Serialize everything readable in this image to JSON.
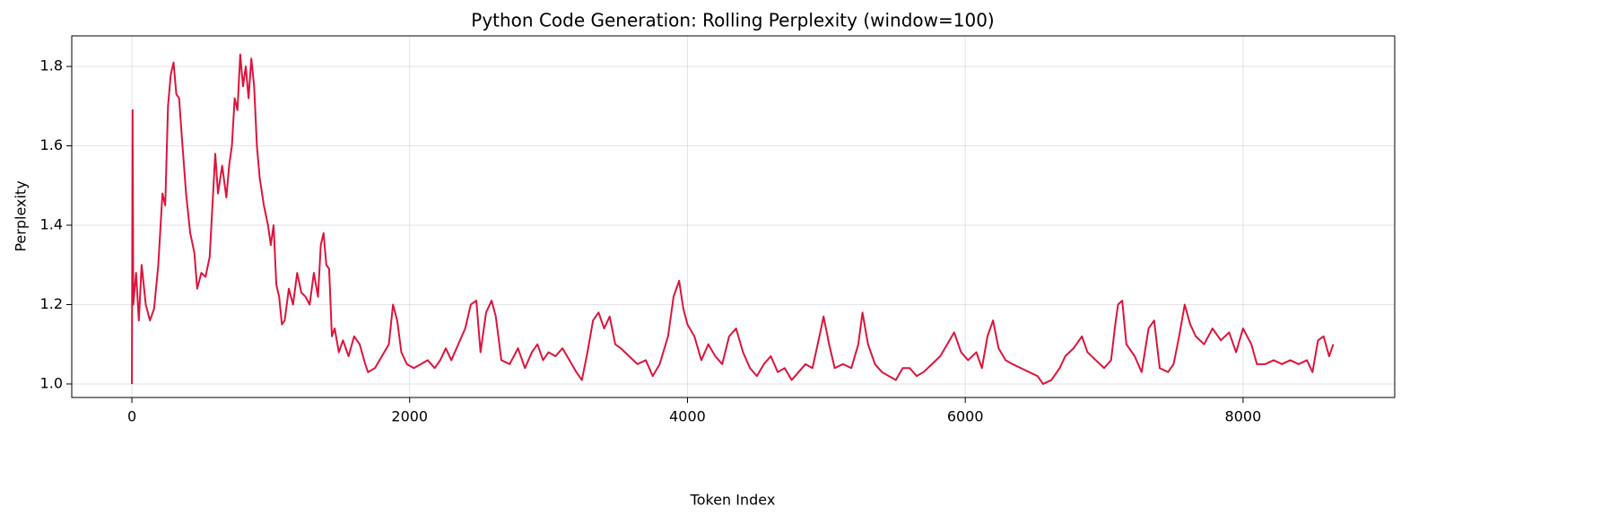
{
  "chart_data": {
    "type": "line",
    "title": "Python Code Generation: Rolling Perplexity (window=100)",
    "x_label": "Token Index",
    "y_label": "Perplexity",
    "color": "#dc143c",
    "grid": true,
    "xlim": [
      -433,
      9092
    ],
    "ylim": [
      0.966,
      1.877
    ],
    "xticks": [
      0,
      2000,
      4000,
      6000,
      8000
    ],
    "yticks": [
      {
        "value": 1,
        "label": "1.0"
      },
      1.2,
      1.4,
      1.6,
      1.8
    ],
    "x": [
      0,
      5,
      10,
      30,
      50,
      70,
      100,
      130,
      160,
      190,
      220,
      240,
      260,
      280,
      300,
      320,
      340,
      360,
      390,
      420,
      450,
      470,
      500,
      530,
      560,
      580,
      600,
      620,
      650,
      680,
      700,
      720,
      740,
      760,
      780,
      800,
      820,
      840,
      860,
      880,
      900,
      920,
      950,
      980,
      1000,
      1020,
      1040,
      1060,
      1080,
      1100,
      1130,
      1160,
      1190,
      1220,
      1250,
      1280,
      1310,
      1340,
      1360,
      1380,
      1400,
      1420,
      1440,
      1460,
      1490,
      1520,
      1560,
      1600,
      1640,
      1680,
      1700,
      1750,
      1800,
      1850,
      1880,
      1910,
      1940,
      1980,
      2030,
      2080,
      2130,
      2180,
      2220,
      2260,
      2300,
      2350,
      2400,
      2440,
      2480,
      2510,
      2550,
      2590,
      2620,
      2660,
      2720,
      2780,
      2830,
      2880,
      2920,
      2960,
      3000,
      3050,
      3100,
      3150,
      3200,
      3240,
      3280,
      3320,
      3360,
      3400,
      3440,
      3480,
      3520,
      3580,
      3640,
      3700,
      3750,
      3800,
      3860,
      3900,
      3940,
      3970,
      4000,
      4050,
      4100,
      4150,
      4200,
      4250,
      4300,
      4350,
      4400,
      4450,
      4500,
      4550,
      4600,
      4650,
      4700,
      4750,
      4800,
      4850,
      4900,
      4950,
      4980,
      5020,
      5060,
      5120,
      5180,
      5230,
      5260,
      5300,
      5350,
      5400,
      5450,
      5500,
      5550,
      5600,
      5650,
      5700,
      5760,
      5820,
      5870,
      5920,
      5970,
      6020,
      6080,
      6120,
      6160,
      6200,
      6240,
      6290,
      6340,
      6400,
      6460,
      6520,
      6560,
      6620,
      6680,
      6720,
      6780,
      6840,
      6880,
      6940,
      7000,
      7050,
      7080,
      7100,
      7130,
      7160,
      7220,
      7270,
      7320,
      7360,
      7400,
      7460,
      7500,
      7540,
      7580,
      7620,
      7660,
      7720,
      7780,
      7840,
      7900,
      7950,
      8000,
      8060,
      8100,
      8160,
      8220,
      8280,
      8340,
      8400,
      8460,
      8500,
      8540,
      8580,
      8620,
      8650
    ],
    "values": [
      1.0,
      1.69,
      1.2,
      1.28,
      1.16,
      1.3,
      1.2,
      1.16,
      1.19,
      1.3,
      1.48,
      1.45,
      1.7,
      1.78,
      1.81,
      1.73,
      1.72,
      1.62,
      1.48,
      1.38,
      1.33,
      1.24,
      1.28,
      1.27,
      1.32,
      1.45,
      1.58,
      1.48,
      1.55,
      1.47,
      1.55,
      1.6,
      1.72,
      1.69,
      1.83,
      1.75,
      1.8,
      1.72,
      1.82,
      1.75,
      1.6,
      1.52,
      1.45,
      1.4,
      1.35,
      1.4,
      1.25,
      1.22,
      1.15,
      1.16,
      1.24,
      1.2,
      1.28,
      1.23,
      1.22,
      1.2,
      1.28,
      1.22,
      1.35,
      1.38,
      1.3,
      1.29,
      1.12,
      1.14,
      1.08,
      1.11,
      1.07,
      1.12,
      1.1,
      1.05,
      1.03,
      1.04,
      1.07,
      1.1,
      1.2,
      1.16,
      1.08,
      1.05,
      1.04,
      1.05,
      1.06,
      1.04,
      1.06,
      1.09,
      1.06,
      1.1,
      1.14,
      1.2,
      1.21,
      1.08,
      1.18,
      1.21,
      1.17,
      1.06,
      1.05,
      1.09,
      1.04,
      1.08,
      1.1,
      1.06,
      1.08,
      1.07,
      1.09,
      1.06,
      1.03,
      1.01,
      1.08,
      1.16,
      1.18,
      1.14,
      1.17,
      1.1,
      1.09,
      1.07,
      1.05,
      1.06,
      1.02,
      1.05,
      1.12,
      1.22,
      1.26,
      1.19,
      1.15,
      1.12,
      1.06,
      1.1,
      1.07,
      1.05,
      1.12,
      1.14,
      1.08,
      1.04,
      1.02,
      1.05,
      1.07,
      1.03,
      1.04,
      1.01,
      1.03,
      1.05,
      1.04,
      1.12,
      1.17,
      1.1,
      1.04,
      1.05,
      1.04,
      1.1,
      1.18,
      1.1,
      1.05,
      1.03,
      1.02,
      1.01,
      1.04,
      1.04,
      1.02,
      1.03,
      1.05,
      1.07,
      1.1,
      1.13,
      1.08,
      1.06,
      1.08,
      1.04,
      1.12,
      1.16,
      1.09,
      1.06,
      1.05,
      1.04,
      1.03,
      1.02,
      1.0,
      1.01,
      1.04,
      1.07,
      1.09,
      1.12,
      1.08,
      1.06,
      1.04,
      1.06,
      1.15,
      1.2,
      1.21,
      1.1,
      1.07,
      1.03,
      1.14,
      1.16,
      1.04,
      1.03,
      1.05,
      1.12,
      1.2,
      1.15,
      1.12,
      1.1,
      1.14,
      1.11,
      1.13,
      1.08,
      1.14,
      1.1,
      1.05,
      1.05,
      1.06,
      1.05,
      1.06,
      1.05,
      1.06,
      1.03,
      1.11,
      1.12,
      1.07,
      1.1
    ]
  }
}
